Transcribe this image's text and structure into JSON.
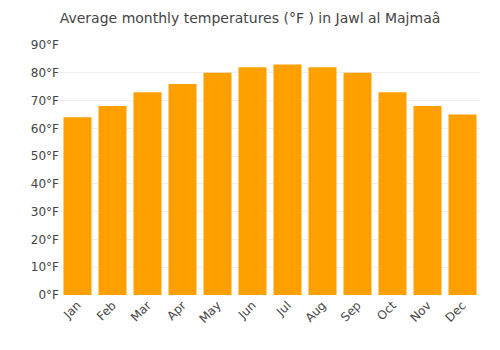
{
  "chart_data": {
    "type": "bar",
    "title": "Average monthly temperatures (°F ) in Jawl al Majmaâ",
    "categories": [
      "Jan",
      "Feb",
      "Mar",
      "Apr",
      "May",
      "Jun",
      "Jul",
      "Aug",
      "Sep",
      "Oct",
      "Nov",
      "Dec"
    ],
    "values": [
      64,
      68,
      73,
      76,
      80,
      82,
      83,
      82,
      80,
      73,
      68,
      65
    ],
    "color": "#FFA000",
    "ylim": [
      0,
      90
    ],
    "yticks": [
      {
        "value": 0,
        "label": "0°F"
      },
      {
        "value": 10,
        "label": "10°F"
      },
      {
        "value": 20,
        "label": "20°F"
      },
      {
        "value": 30,
        "label": "30°F"
      },
      {
        "value": 40,
        "label": "40°F"
      },
      {
        "value": 50,
        "label": "50°F"
      },
      {
        "value": 60,
        "label": "60°F"
      },
      {
        "value": 70,
        "label": "70°F"
      },
      {
        "value": 80,
        "label": "80°F"
      },
      {
        "value": 90,
        "label": "90°F"
      }
    ],
    "grid": true
  }
}
